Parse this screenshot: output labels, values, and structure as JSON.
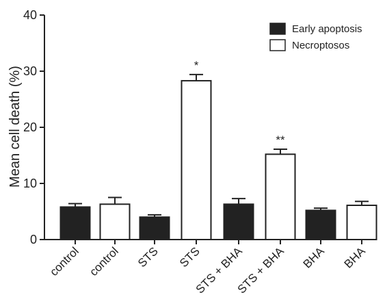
{
  "chart_data": {
    "type": "bar",
    "ylabel": "Mean cell death (%)",
    "xlabel": "",
    "ylim": [
      0,
      40
    ],
    "yticks": [
      0,
      10,
      20,
      30,
      40
    ],
    "categories": [
      "control",
      "control",
      "STS",
      "STS",
      "STS + BHA",
      "STS + BHA",
      "BHA",
      "BHA"
    ],
    "values": [
      5.8,
      6.3,
      4.0,
      28.3,
      6.3,
      15.2,
      5.2,
      6.1
    ],
    "errors": [
      0.6,
      1.2,
      0.4,
      1.1,
      1.0,
      0.9,
      0.4,
      0.7
    ],
    "series_index": [
      0,
      1,
      0,
      1,
      0,
      1,
      0,
      1
    ],
    "annotations": [
      "",
      "",
      "",
      "*",
      "",
      "**",
      "",
      ""
    ],
    "series": [
      {
        "name": "Early apoptosis",
        "fill": "#222222"
      },
      {
        "name": "Necroptosos",
        "fill": "#ffffff"
      }
    ],
    "legend_position": "top-right",
    "grid": false
  }
}
